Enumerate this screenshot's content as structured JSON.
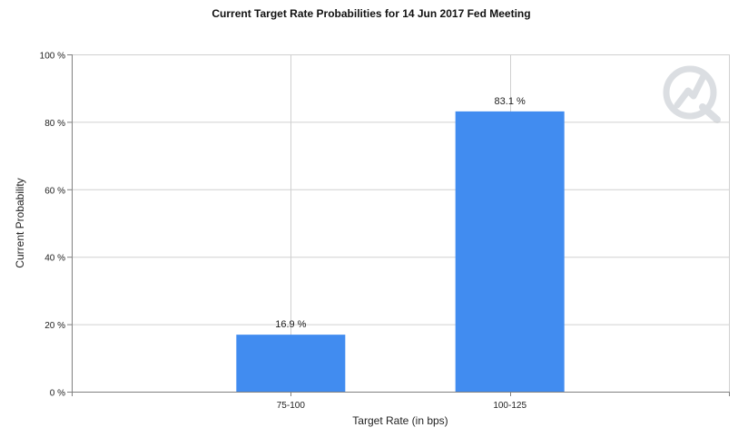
{
  "chart_data": {
    "type": "bar",
    "title": "Current Target Rate Probabilities for 14 Jun 2017 Fed Meeting",
    "xlabel": "Target Rate (in bps)",
    "ylabel": "Current Probability",
    "categories": [
      "75-100",
      "100-125"
    ],
    "values": [
      16.9,
      83.1
    ],
    "value_labels": [
      "16.9 %",
      "83.1 %"
    ],
    "ylim": [
      0,
      100
    ],
    "yticks": [
      0,
      20,
      40,
      60,
      80,
      100
    ],
    "ytick_labels": [
      "0 %",
      "20 %",
      "40 %",
      "60 %",
      "80 %",
      "100 %"
    ],
    "grid": true,
    "bar_color": "#418cf0",
    "watermark_icon": "quandl-logo-icon"
  }
}
